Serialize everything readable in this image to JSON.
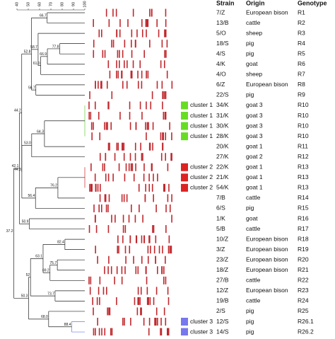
{
  "scale": {
    "ticks": [
      40,
      50,
      60,
      70,
      80,
      90,
      100
    ]
  },
  "columns": {
    "strain": "Strain",
    "origin": "Origin",
    "genotype": "Genotype"
  },
  "tree": {
    "value": 37.2,
    "children": [
      {
        "value": 42.1,
        "children": [
          {
            "value": 44.2,
            "children": [
              {
                "value": 52.8,
                "children": [
                  {
                    "value": 66.7,
                    "children": [
                      0,
                      1
                    ]
                  },
                  {
                    "value": 58.7,
                    "children": [
                      2,
                      {
                        "value": 61.0,
                        "label": "61.0",
                        "children": [
                          {
                            "value": 66.9,
                            "children": [
                              {
                                "value": 77.8,
                                "children": [
                                  3,
                                  4
                                ]
                              },
                              5
                            ]
                          },
                          6
                        ]
                      }
                    ]
                  },
                  {
                    "value": 56.7,
                    "children": [
                      7,
                      8
                    ]
                  }
                ]
              },
              {
                "value": 44.3,
                "children": [
                  {
                    "value": 53.0,
                    "label": "53.0",
                    "children": [
                      {
                        "value": 64.3,
                        "children": [
                          {
                            "value": 100,
                            "color": "#66cc33",
                            "children": [
                              9,
                              10,
                              11,
                              12
                            ]
                          },
                          13
                        ]
                      },
                      14
                    ]
                  },
                  {
                    "value": 56.4,
                    "children": [
                      {
                        "value": 76.2,
                        "children": [
                          {
                            "value": 100,
                            "color": "#cc2222",
                            "children": [
                              15,
                              16,
                              17
                            ]
                          },
                          18
                        ]
                      },
                      19
                    ]
                  }
                ]
              }
            ]
          },
          {
            "value": 50.9,
            "children": [
              20,
              21
            ]
          }
        ]
      },
      {
        "value": 50.3,
        "children": [
          {
            "value": 52.0,
            "children": [
              {
                "value": 63.1,
                "children": [
                  {
                    "value": 82.4,
                    "children": [
                      22,
                      23
                    ]
                  },
                  {
                    "value": 69.2,
                    "children": [
                      {
                        "value": 75.7,
                        "children": [
                          24,
                          25
                        ]
                      },
                      26
                    ]
                  }
                ]
              },
              {
                "value": 73.7,
                "children": [
                  27,
                  28
                ]
              }
            ]
          },
          {
            "value": 68.0,
            "label": "68.0",
            "children": [
              29,
              {
                "value": 88.4,
                "color": "#6677ee",
                "children": [
                  30,
                  31
                ]
              }
            ]
          }
        ]
      }
    ]
  },
  "rows": [
    {
      "strain": "7/Z",
      "origin": "European bison",
      "genotype": "R1"
    },
    {
      "strain": "13/B",
      "origin": "cattle",
      "genotype": "R2"
    },
    {
      "strain": "5/O",
      "origin": "sheep",
      "genotype": "R3"
    },
    {
      "strain": "18/S",
      "origin": "pig",
      "genotype": "R4"
    },
    {
      "strain": "4/S",
      "origin": "pig",
      "genotype": "R5"
    },
    {
      "strain": "4/K",
      "origin": "goat",
      "genotype": "R6"
    },
    {
      "strain": "4/O",
      "origin": "sheep",
      "genotype": "R7"
    },
    {
      "strain": "6/Z",
      "origin": "European bison",
      "genotype": "R8"
    },
    {
      "strain": "22/S",
      "origin": "pig",
      "genotype": "R9"
    },
    {
      "strain": "34/K",
      "origin": "goat 3",
      "genotype": "R10",
      "cluster": "cluster 1",
      "cluster_color": "#66dd22"
    },
    {
      "strain": "31/K",
      "origin": "goat 3",
      "genotype": "R10",
      "cluster": "cluster 1",
      "cluster_color": "#66dd22"
    },
    {
      "strain": "30/K",
      "origin": "goat 3",
      "genotype": "R10",
      "cluster": "cluster 1",
      "cluster_color": "#66dd22"
    },
    {
      "strain": "28/K",
      "origin": "goat 3",
      "genotype": "R10",
      "cluster": "cluster 1",
      "cluster_color": "#66dd22"
    },
    {
      "strain": "20/K",
      "origin": "goat 1",
      "genotype": "R11"
    },
    {
      "strain": "27/K",
      "origin": "goat 2",
      "genotype": "R12"
    },
    {
      "strain": "22/K",
      "origin": "goat 1",
      "genotype": "R13",
      "cluster": "cluster 2",
      "cluster_color": "#dd2222"
    },
    {
      "strain": "21/K",
      "origin": "goat 1",
      "genotype": "R13",
      "cluster": "cluster 2",
      "cluster_color": "#dd2222"
    },
    {
      "strain": "54/K",
      "origin": "goat 1",
      "genotype": "R13",
      "cluster": "cluster 2",
      "cluster_color": "#dd2222"
    },
    {
      "strain": "7/B",
      "origin": "cattle",
      "genotype": "R14"
    },
    {
      "strain": "6/S",
      "origin": "pig",
      "genotype": "R15"
    },
    {
      "strain": "1/K",
      "origin": "goat",
      "genotype": "R16"
    },
    {
      "strain": "5/B",
      "origin": "cattle",
      "genotype": "R17"
    },
    {
      "strain": "10/Z",
      "origin": "European bison",
      "genotype": "R18"
    },
    {
      "strain": "3/Z",
      "origin": "European bison",
      "genotype": "R19"
    },
    {
      "strain": "23/Z",
      "origin": "European bison",
      "genotype": "R20"
    },
    {
      "strain": "18/Z",
      "origin": "European bison",
      "genotype": "R21"
    },
    {
      "strain": "27/B",
      "origin": "cattle",
      "genotype": "R22"
    },
    {
      "strain": "12/Z",
      "origin": "European bison",
      "genotype": "R23"
    },
    {
      "strain": "19/B",
      "origin": "cattle",
      "genotype": "R24"
    },
    {
      "strain": "2/S",
      "origin": "pig",
      "genotype": "R25"
    },
    {
      "strain": "12/S",
      "origin": "pig",
      "genotype": "R26.1",
      "cluster": "cluster 3",
      "cluster_color": "#7777ee"
    },
    {
      "strain": "14/S",
      "origin": "pig",
      "genotype": "R26.2",
      "cluster": "cluster 3",
      "cluster_color": "#7777ee"
    }
  ]
}
